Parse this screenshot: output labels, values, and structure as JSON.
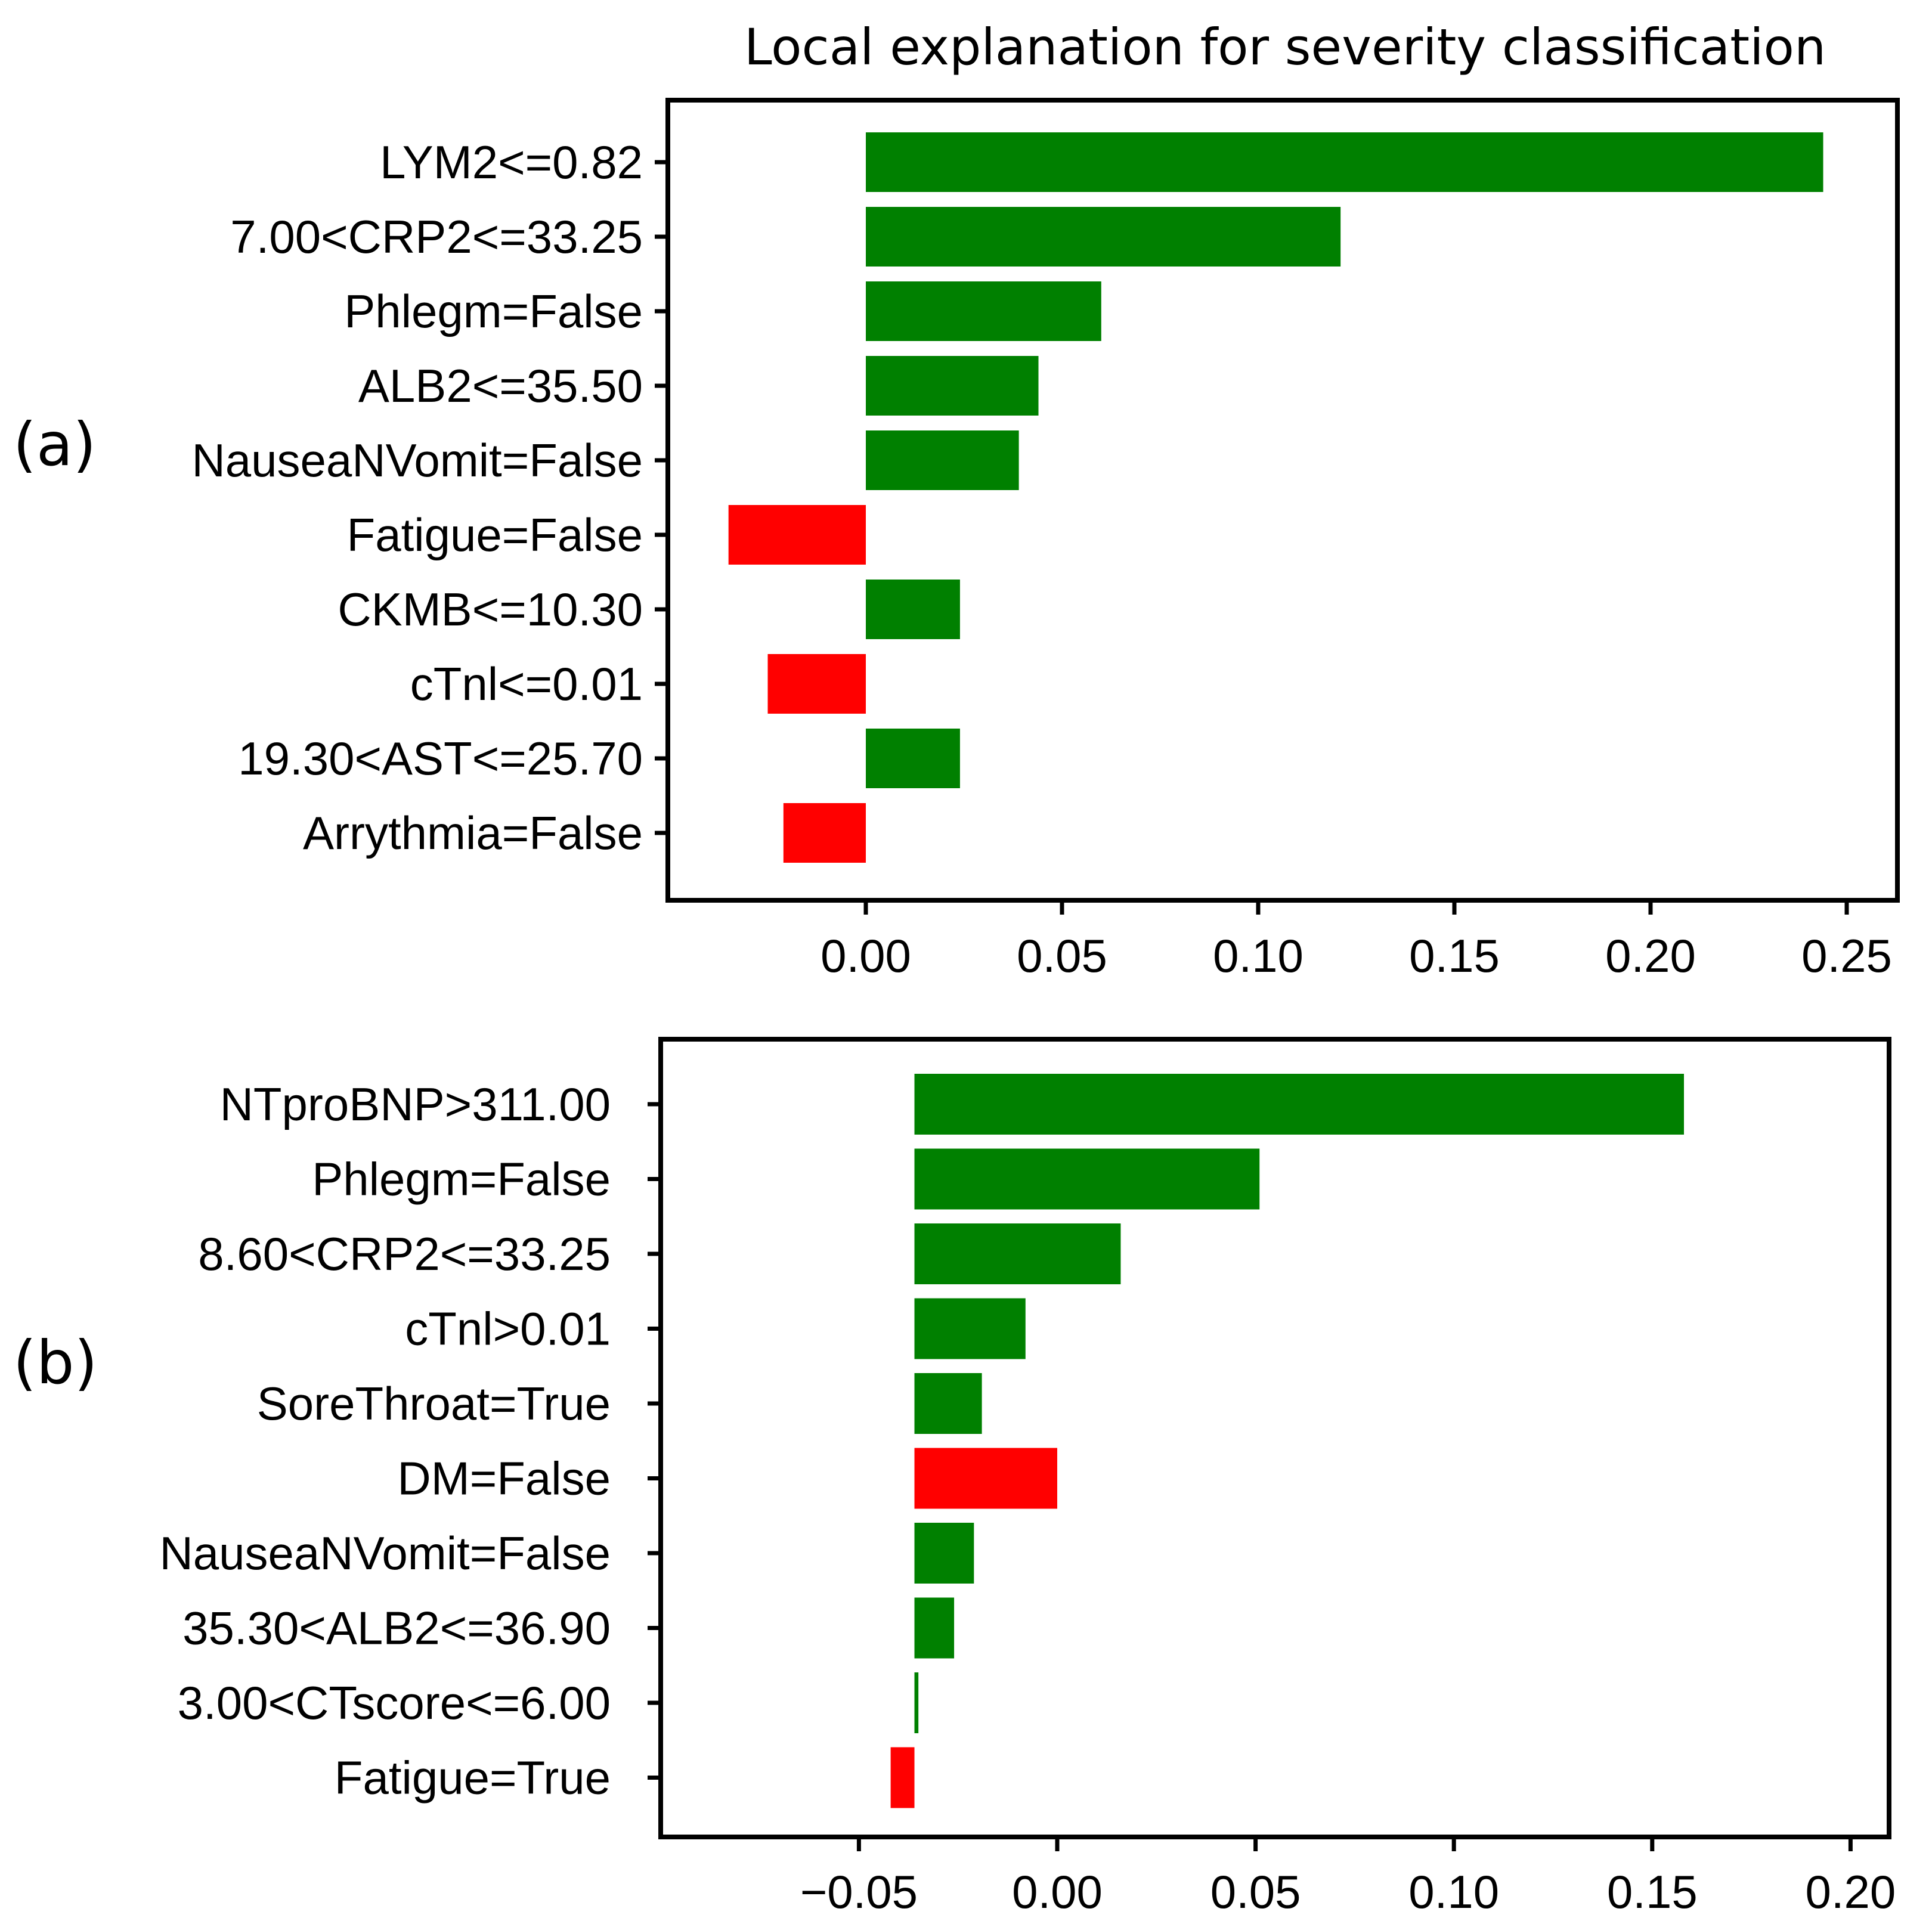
{
  "title": "Local explanation for severity classification",
  "colors": {
    "positive": "#008000",
    "negative": "#ff0000"
  },
  "chart_data": [
    {
      "type": "bar",
      "orientation": "horizontal",
      "panel": "(a)",
      "title": "Local explanation for severity classification",
      "categories": [
        "LYM2<=0.82",
        "7.00<CRP2<=33.25",
        "Phlegm=False",
        "ALB2<=35.50",
        "NauseaNVomit=False",
        "Fatigue=False",
        "CKMB<=10.30",
        "cTnl<=0.01",
        "19.30<AST<=25.70",
        "Arrythmia=False"
      ],
      "values": [
        0.244,
        0.121,
        0.06,
        0.044,
        0.039,
        -0.035,
        0.024,
        -0.025,
        0.024,
        -0.021
      ],
      "xlim": [
        -0.05,
        0.255
      ],
      "xticks": [
        "0.00",
        "0.05",
        "0.10",
        "0.15",
        "0.20",
        "0.25"
      ],
      "xtick_values": [
        0.0,
        0.05,
        0.1,
        0.15,
        0.2,
        0.25
      ],
      "xlabel": "",
      "ylabel": ""
    },
    {
      "type": "bar",
      "orientation": "horizontal",
      "panel": "(b)",
      "categories": [
        "NTproBNP>311.00",
        "Phlegm=False",
        "8.60<CRP2<=33.25",
        "cTnl>0.01",
        "SoreThroat=True",
        "DM=False",
        "NauseaNVomit=False",
        "35.30<ALB2<=36.90",
        "3.00<CTscore<=6.00",
        "Fatigue=True"
      ],
      "values": [
        0.194,
        0.087,
        0.052,
        0.028,
        0.017,
        -0.036,
        0.015,
        0.01,
        0.001,
        -0.006
      ],
      "base": [
        -0.036,
        -0.036,
        -0.036,
        -0.036,
        -0.036,
        0.0,
        -0.036,
        -0.036,
        -0.036,
        -0.036
      ],
      "xlim": [
        -0.1,
        0.21
      ],
      "xticks": [
        "−0.05",
        "0.00",
        "0.05",
        "0.10",
        "0.15",
        "0.20"
      ],
      "xtick_values": [
        -0.05,
        0.0,
        0.05,
        0.1,
        0.15,
        0.2
      ],
      "xlabel": "",
      "ylabel": ""
    }
  ]
}
